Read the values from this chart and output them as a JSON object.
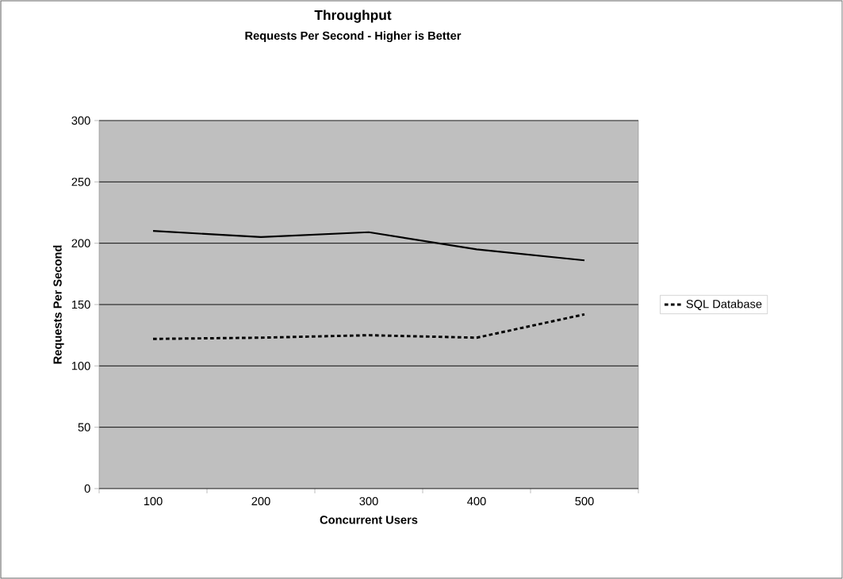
{
  "chart_data": {
    "type": "line",
    "title": "Throughput",
    "subtitle": "Requests Per Second - Higher is Better",
    "xlabel": "Concurrent Users",
    "ylabel": "Requests Per Second",
    "categories": [
      "100",
      "200",
      "300",
      "400",
      "500"
    ],
    "series": [
      {
        "color": "#000000",
        "line_style": "solid",
        "values": [
          210,
          205,
          209,
          195,
          186
        ]
      },
      {
        "name": "SQL Database",
        "color": "#000000",
        "line_style": "dashed",
        "values": [
          122,
          123,
          125,
          123,
          142
        ]
      }
    ],
    "ylim": [
      0,
      300
    ],
    "yticks": [
      0,
      50,
      100,
      150,
      200,
      250,
      300
    ],
    "grid": "y",
    "legend": "right",
    "marker": "none"
  }
}
